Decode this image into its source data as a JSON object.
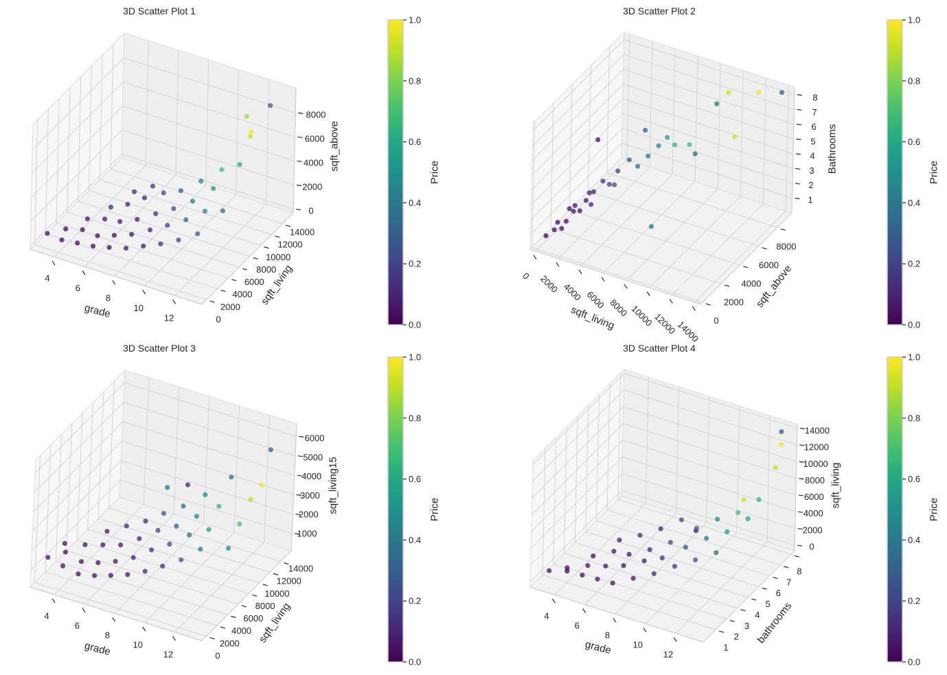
{
  "chart_data": [
    {
      "type": "scatter3d",
      "title": "3D Scatter Plot 1",
      "xlabel": "grade",
      "ylabel": "sqft_living",
      "zlabel": "sqft_above",
      "xticks": [
        "4",
        "6",
        "8",
        "10",
        "12"
      ],
      "yticks": [
        "0",
        "2000",
        "4000",
        "6000",
        "8000",
        "10000",
        "12000",
        "14000"
      ],
      "zticks": [
        "0",
        "2000",
        "4000",
        "6000",
        "8000"
      ],
      "xlim": [
        2.4,
        13.8
      ],
      "ylim": [
        -843,
        16024
      ],
      "zlim": [
        -312,
        10078
      ],
      "grid": true,
      "colorbar": {
        "label": "Price",
        "colormap": "viridis",
        "range": [
          0,
          1
        ],
        "ticks": [
          "0.0",
          "0.2",
          "0.4",
          "0.6",
          "0.8",
          "1.0"
        ]
      },
      "points": [
        [
          3,
          600,
          600,
          0.05
        ],
        [
          4,
          500,
          500,
          0.02
        ],
        [
          4,
          1200,
          1100,
          0.02
        ],
        [
          5,
          600,
          600,
          0.02
        ],
        [
          5,
          1500,
          1300,
          0.03
        ],
        [
          5,
          2400,
          1800,
          0.05
        ],
        [
          6,
          700,
          700,
          0.02
        ],
        [
          6,
          1500,
          1200,
          0.03
        ],
        [
          6,
          2800,
          2000,
          0.05
        ],
        [
          6,
          3900,
          2500,
          0.1
        ],
        [
          7,
          900,
          900,
          0.03
        ],
        [
          7,
          1800,
          1500,
          0.04
        ],
        [
          7,
          2800,
          2200,
          0.06
        ],
        [
          7,
          4200,
          3000,
          0.1
        ],
        [
          7,
          5400,
          3500,
          0.1
        ],
        [
          8,
          1200,
          1100,
          0.05
        ],
        [
          8,
          2200,
          1800,
          0.06
        ],
        [
          8,
          3200,
          2600,
          0.08
        ],
        [
          8,
          4500,
          3800,
          0.1
        ],
        [
          8,
          6000,
          4100,
          0.15
        ],
        [
          9,
          1600,
          1500,
          0.07
        ],
        [
          9,
          2800,
          2300,
          0.1
        ],
        [
          9,
          3800,
          3200,
          0.13
        ],
        [
          9,
          5200,
          4300,
          0.2
        ],
        [
          10,
          2000,
          1900,
          0.12
        ],
        [
          10,
          3200,
          2900,
          0.18
        ],
        [
          10,
          4300,
          3800,
          0.25
        ],
        [
          10,
          5600,
          4700,
          0.3
        ],
        [
          11,
          2500,
          2400,
          0.2
        ],
        [
          11,
          3800,
          3500,
          0.3
        ],
        [
          11,
          5000,
          4500,
          0.4
        ],
        [
          11,
          6500,
          5500,
          0.45
        ],
        [
          12,
          3200,
          3000,
          0.3
        ],
        [
          12,
          4500,
          4300,
          0.45
        ],
        [
          12,
          6000,
          5500,
          0.55
        ],
        [
          12,
          7500,
          6400,
          0.7
        ],
        [
          13,
          5000,
          4500,
          0.35
        ],
        [
          13,
          8000,
          7000,
          0.6
        ],
        [
          13,
          9900,
          8500,
          0.9
        ],
        [
          12,
          12000,
          8800,
          0.85
        ],
        [
          13,
          10000,
          8800,
          0.98
        ],
        [
          13,
          13540,
          9410,
          0.3
        ]
      ]
    },
    {
      "type": "scatter3d",
      "title": "3D Scatter Plot 2",
      "xlabel": "sqft_living",
      "ylabel": "sqft_above",
      "zlabel": "Bathrooms",
      "xticks": [
        "0",
        "2000",
        "4000",
        "6000",
        "8000",
        "10000",
        "12000",
        "14000"
      ],
      "yticks": [
        "0",
        "2000",
        "4000",
        "6000",
        "8000"
      ],
      "zticks": [
        "1",
        "2",
        "3",
        "4",
        "5",
        "6",
        "7",
        "8"
      ],
      "xlim": [
        -480,
        14520
      ],
      "ylim": [
        -195,
        9561
      ],
      "zlim": [
        0,
        8.5
      ],
      "grid": true,
      "colorbar": {
        "label": "Price",
        "colormap": "viridis",
        "range": [
          0,
          1
        ],
        "ticks": [
          "0.0",
          "0.2",
          "0.4",
          "0.6",
          "0.8",
          "1.0"
        ]
      },
      "points": [
        [
          400,
          400,
          0.75,
          0.01
        ],
        [
          800,
          800,
          1,
          0.02
        ],
        [
          1200,
          1100,
          1,
          0.03
        ],
        [
          1500,
          1200,
          1.5,
          0.04
        ],
        [
          1800,
          1600,
          2,
          0.05
        ],
        [
          2000,
          1500,
          2.5,
          0.06
        ],
        [
          2400,
          2200,
          2.5,
          0.07
        ],
        [
          2800,
          2500,
          3,
          0.1
        ],
        [
          3000,
          2000,
          2.5,
          0.12
        ],
        [
          3200,
          3000,
          3.5,
          0.15
        ],
        [
          3600,
          3200,
          3.25,
          0.18
        ],
        [
          4000,
          3600,
          4,
          0.2
        ],
        [
          4200,
          3000,
          3.5,
          0.25
        ],
        [
          4500,
          4200,
          4.5,
          0.3
        ],
        [
          5000,
          4500,
          4,
          0.35
        ],
        [
          5500,
          5000,
          4.5,
          0.4
        ],
        [
          6000,
          5500,
          5,
          0.45
        ],
        [
          6500,
          5800,
          5.5,
          0.55
        ],
        [
          7000,
          6000,
          5,
          0.65
        ],
        [
          7500,
          7000,
          4.5,
          0.7
        ],
        [
          8000,
          7000,
          4,
          0.3
        ],
        [
          3000,
          2600,
          6.5,
          0.05
        ],
        [
          6000,
          4000,
          7,
          0.3
        ],
        [
          9000,
          8000,
          7,
          0.4
        ],
        [
          10000,
          8800,
          4.5,
          0.92
        ],
        [
          8000,
          2400,
          2,
          0.4
        ],
        [
          10000,
          8000,
          8,
          0.9
        ],
        [
          12000,
          8800,
          8,
          0.98
        ],
        [
          13540,
          9410,
          8,
          0.3
        ],
        [
          1000,
          900,
          1.5,
          0.03
        ],
        [
          2200,
          1800,
          2,
          0.05
        ],
        [
          2600,
          2300,
          3,
          0.06
        ],
        [
          1600,
          1400,
          2.25,
          0.04
        ]
      ]
    },
    {
      "type": "scatter3d",
      "title": "3D Scatter Plot 3",
      "xlabel": "grade",
      "ylabel": "sqft_living",
      "zlabel": "sqft_living15",
      "xticks": [
        "4",
        "6",
        "8",
        "10",
        "12"
      ],
      "yticks": [
        "0",
        "2000",
        "4000",
        "6000",
        "8000",
        "10000",
        "12000",
        "14000"
      ],
      "zticks": [
        "1000",
        "2000",
        "3000",
        "4000",
        "5000",
        "6000"
      ],
      "xlim": [
        2.4,
        13.8
      ],
      "ylim": [
        -843,
        16024
      ],
      "zlim": [
        117,
        6653
      ],
      "grid": true,
      "colorbar": {
        "label": "Price",
        "colormap": "viridis",
        "range": [
          0,
          1
        ],
        "ticks": [
          "0.0",
          "0.2",
          "0.4",
          "0.6",
          "0.8",
          "1.0"
        ]
      },
      "points": [
        [
          3,
          600,
          1400,
          0.05
        ],
        [
          4,
          600,
          1200,
          0.02
        ],
        [
          4,
          1000,
          1800,
          0.03
        ],
        [
          4,
          800,
          2300,
          0.04
        ],
        [
          5,
          700,
          1000,
          0.02
        ],
        [
          5,
          1200,
          1500,
          0.03
        ],
        [
          5,
          1800,
          2200,
          0.04
        ],
        [
          6,
          900,
          1100,
          0.03
        ],
        [
          6,
          1500,
          1600,
          0.04
        ],
        [
          6,
          2300,
          2300,
          0.05
        ],
        [
          6,
          3000,
          2800,
          0.07
        ],
        [
          7,
          1100,
          1300,
          0.04
        ],
        [
          7,
          1900,
          1800,
          0.05
        ],
        [
          7,
          2800,
          2400,
          0.07
        ],
        [
          7,
          3800,
          3100,
          0.1
        ],
        [
          8,
          1400,
          1500,
          0.06
        ],
        [
          8,
          2400,
          2100,
          0.08
        ],
        [
          8,
          3400,
          2800,
          0.1
        ],
        [
          8,
          4500,
          3400,
          0.12
        ],
        [
          9,
          1800,
          1800,
          0.1
        ],
        [
          9,
          2900,
          2600,
          0.15
        ],
        [
          9,
          4000,
          3300,
          0.2
        ],
        [
          9,
          5000,
          3900,
          0.25
        ],
        [
          10,
          2200,
          2200,
          0.15
        ],
        [
          10,
          3400,
          3000,
          0.2
        ],
        [
          10,
          4600,
          3600,
          0.3
        ],
        [
          10,
          5800,
          4300,
          0.35
        ],
        [
          11,
          2800,
          2600,
          0.25
        ],
        [
          11,
          4200,
          3500,
          0.35
        ],
        [
          11,
          5500,
          4100,
          0.45
        ],
        [
          11,
          7000,
          4800,
          0.5
        ],
        [
          12,
          3500,
          3200,
          0.4
        ],
        [
          12,
          5000,
          3800,
          0.55
        ],
        [
          12,
          6800,
          4500,
          0.65
        ],
        [
          12,
          9000,
          5400,
          0.4
        ],
        [
          13,
          6000,
          2800,
          0.5
        ],
        [
          13,
          8000,
          3500,
          0.7
        ],
        [
          13,
          10000,
          4200,
          0.9
        ],
        [
          13,
          12000,
          4400,
          0.98
        ],
        [
          13,
          13540,
          5800,
          0.3
        ],
        [
          10,
          6500,
          5200,
          0.1
        ],
        [
          9,
          5500,
          5100,
          0.35
        ]
      ]
    },
    {
      "type": "scatter3d",
      "title": "3D Scatter Plot 4",
      "xlabel": "grade",
      "ylabel": "bathrooms",
      "zlabel": "sqft_living",
      "xticks": [
        "4",
        "6",
        "8",
        "10",
        "12"
      ],
      "yticks": [
        "1",
        "2",
        "3",
        "4",
        "5",
        "6",
        "7",
        "8"
      ],
      "zticks": [
        "0",
        "2000",
        "4000",
        "6000",
        "8000",
        "10000",
        "12000",
        "14000"
      ],
      "xlim": [
        2.4,
        13.8
      ],
      "ylim": [
        -0.15,
        8.33
      ],
      "zlim": [
        -650,
        14450
      ],
      "grid": true,
      "colorbar": {
        "label": "Price",
        "colormap": "viridis",
        "range": [
          0,
          1
        ],
        "ticks": [
          "0.0",
          "0.2",
          "0.4",
          "0.6",
          "0.8",
          "1.0"
        ]
      },
      "points": [
        [
          3,
          0.75,
          500,
          0.05
        ],
        [
          4,
          1,
          700,
          0.02
        ],
        [
          4,
          1,
          1100,
          0.02
        ],
        [
          5,
          1,
          800,
          0.02
        ],
        [
          5,
          1.5,
          1300,
          0.03
        ],
        [
          5,
          2,
          1800,
          0.04
        ],
        [
          6,
          1,
          900,
          0.03
        ],
        [
          6,
          1.75,
          1500,
          0.04
        ],
        [
          6,
          2.5,
          2300,
          0.06
        ],
        [
          6,
          3,
          3000,
          0.08
        ],
        [
          7,
          1,
          1000,
          0.03
        ],
        [
          7,
          2,
          1800,
          0.05
        ],
        [
          7,
          2.5,
          2500,
          0.06
        ],
        [
          7,
          3.5,
          3500,
          0.1
        ],
        [
          8,
          1.5,
          1500,
          0.05
        ],
        [
          8,
          2.5,
          2300,
          0.07
        ],
        [
          8,
          3,
          3000,
          0.1
        ],
        [
          8,
          4,
          4200,
          0.12
        ],
        [
          9,
          2,
          2000,
          0.1
        ],
        [
          9,
          2.75,
          2900,
          0.14
        ],
        [
          9,
          3.5,
          3800,
          0.2
        ],
        [
          9,
          4.5,
          5200,
          0.22
        ],
        [
          10,
          2.5,
          2800,
          0.15
        ],
        [
          10,
          3.5,
          3800,
          0.25
        ],
        [
          10,
          4.5,
          4800,
          0.35
        ],
        [
          11,
          3,
          3500,
          0.25
        ],
        [
          11,
          4,
          4800,
          0.4
        ],
        [
          11,
          5,
          5800,
          0.5
        ],
        [
          12,
          3.5,
          4300,
          0.35
        ],
        [
          12,
          4.5,
          5500,
          0.55
        ],
        [
          12,
          5.5,
          6500,
          0.7
        ],
        [
          13,
          5,
          7000,
          0.6
        ],
        [
          13,
          6,
          8000,
          0.65
        ],
        [
          13,
          7.5,
          9900,
          0.9
        ],
        [
          13,
          8,
          12000,
          0.98
        ],
        [
          13,
          8,
          13540,
          0.3
        ],
        [
          11,
          3,
          7000,
          0.05
        ],
        [
          12,
          6,
          7400,
          0.92
        ]
      ]
    }
  ]
}
